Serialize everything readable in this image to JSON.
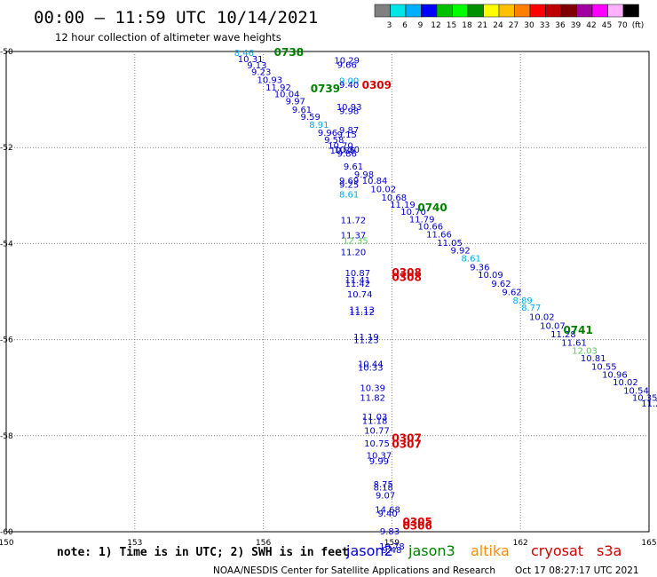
{
  "header": {
    "title": "00:00 – 11:59 UTC 10/14/2021",
    "subtitle": "12 hour collection of altimeter wave heights"
  },
  "scale": {
    "colors": [
      "#808080",
      "#00e5e5",
      "#00b0ff",
      "#0000ff",
      "#00c000",
      "#00ff00",
      "#009000",
      "#ffff00",
      "#ffc000",
      "#ff7f00",
      "#ff0000",
      "#c00000",
      "#800000",
      "#a000a0",
      "#ff00ff",
      "#ffb0ff",
      "#000000"
    ],
    "labels": [
      "3",
      "6",
      "9",
      "12",
      "15",
      "18",
      "21",
      "24",
      "27",
      "30",
      "33",
      "36",
      "39",
      "42",
      "45",
      "70",
      "(ft)"
    ]
  },
  "footer": {
    "note": "note: 1) Time is in UTC; 2) SWH is in feet",
    "credit": "NOAA/NESDIS Center for Satellite Applications and Research",
    "timestamp": "Oct 17 08:27:17 UTC 2021",
    "legend": [
      {
        "name": "jason2",
        "color": "#0000cc"
      },
      {
        "name": "jason3",
        "color": "#008000"
      },
      {
        "name": "altika",
        "color": "#ff8c00"
      },
      {
        "name": "cryosat",
        "color": "#cc0000"
      },
      {
        "name": "s3a",
        "color": "#cc0000"
      }
    ]
  },
  "chart_data": {
    "type": "scatter",
    "xlim": [
      150,
      165
    ],
    "ylim": [
      -60,
      -50
    ],
    "x_ticks": [
      150,
      153,
      156,
      159,
      162,
      165
    ],
    "x_tick_labels": [
      "150",
      "153",
      "156",
      "159",
      "162",
      "165"
    ],
    "y_ticks": [
      -50,
      -52,
      -54,
      -56,
      -58,
      -60
    ],
    "y_tick_labels": [
      "-50",
      "-52",
      "-54",
      "-56",
      "-58",
      "-60"
    ],
    "grid": true,
    "value_colors": {
      "b": "#0000cc",
      "c": "#00aaee",
      "g": "#55cc55"
    },
    "pass_labels": [
      {
        "text": "0738",
        "x": 156.25,
        "y": -50.02,
        "color": "#008000"
      },
      {
        "text": "0739",
        "x": 157.1,
        "y": -50.78,
        "color": "#008000"
      },
      {
        "text": "0309",
        "x": 158.3,
        "y": -50.7,
        "color": "#dd0000"
      },
      {
        "text": "0740",
        "x": 159.6,
        "y": -53.25,
        "color": "#008000"
      },
      {
        "text": "0308",
        "x": 159.0,
        "y": -54.6,
        "color": "#dd0000"
      },
      {
        "text": "0308",
        "x": 159.0,
        "y": -54.7,
        "color": "#dd0000"
      },
      {
        "text": "0741",
        "x": 163.0,
        "y": -55.8,
        "color": "#008000"
      },
      {
        "text": "0307",
        "x": 159.0,
        "y": -58.05,
        "color": "#dd0000"
      },
      {
        "text": "0307",
        "x": 159.0,
        "y": -58.18,
        "color": "#dd0000"
      },
      {
        "text": "0305",
        "x": 159.25,
        "y": -59.8,
        "color": "#dd0000"
      },
      {
        "text": "0306",
        "x": 159.25,
        "y": -59.88,
        "color": "#dd0000"
      }
    ],
    "points": [
      [
        "8.46",
        155.55,
        -50.02,
        "c"
      ],
      [
        "10.31",
        155.7,
        -50.15,
        "b"
      ],
      [
        "9.13",
        155.85,
        -50.28,
        "b"
      ],
      [
        "9.23",
        155.95,
        -50.42,
        "b"
      ],
      [
        "10.93",
        156.15,
        -50.58,
        "b"
      ],
      [
        "11.92",
        156.35,
        -50.74,
        "b"
      ],
      [
        "10.04",
        156.55,
        -50.88,
        "b"
      ],
      [
        "9.97",
        156.75,
        -51.03,
        "b"
      ],
      [
        "9.61",
        156.9,
        -51.2,
        "b"
      ],
      [
        "9.59",
        157.1,
        -51.35,
        "b"
      ],
      [
        "8.91",
        157.3,
        -51.52,
        "c"
      ],
      [
        "9.96",
        157.5,
        -51.68,
        "b"
      ],
      [
        "9.58",
        157.65,
        -51.83,
        "b"
      ],
      [
        "10.70",
        157.8,
        -51.95,
        "b"
      ],
      [
        "10.86",
        157.85,
        -52.05,
        "b"
      ],
      [
        "9.61",
        158.1,
        -52.38,
        "b"
      ],
      [
        "9.98",
        158.35,
        -52.55,
        "b"
      ],
      [
        "10.84",
        158.6,
        -52.68,
        "b"
      ],
      [
        "10.02",
        158.8,
        -52.86,
        "b"
      ],
      [
        "10.68",
        159.05,
        -53.03,
        "b"
      ],
      [
        "11.19",
        159.25,
        -53.18,
        "b"
      ],
      [
        "10.70",
        159.5,
        -53.33,
        "b"
      ],
      [
        "11.79",
        159.7,
        -53.48,
        "b"
      ],
      [
        "10.66",
        159.9,
        -53.63,
        "b"
      ],
      [
        "11.66",
        160.1,
        -53.8,
        "b"
      ],
      [
        "11.05",
        160.35,
        -53.97,
        "b"
      ],
      [
        "9.92",
        160.6,
        -54.13,
        "b"
      ],
      [
        "8.61",
        160.85,
        -54.3,
        "c"
      ],
      [
        "9.36",
        161.05,
        -54.48,
        "b"
      ],
      [
        "10.09",
        161.3,
        -54.64,
        "b"
      ],
      [
        "9.62",
        161.55,
        -54.82,
        "b"
      ],
      [
        "9.62",
        161.8,
        -55.0,
        "b"
      ],
      [
        "8.89",
        162.05,
        -55.18,
        "c"
      ],
      [
        "8.77",
        162.25,
        -55.32,
        "c"
      ],
      [
        "10.02",
        162.5,
        -55.52,
        "b"
      ],
      [
        "10.07",
        162.75,
        -55.7,
        "b"
      ],
      [
        "11.28",
        163.0,
        -55.88,
        "b"
      ],
      [
        "11.61",
        163.25,
        -56.05,
        "b"
      ],
      [
        "12.03",
        163.5,
        -56.22,
        "g"
      ],
      [
        "10.81",
        163.7,
        -56.38,
        "b"
      ],
      [
        "10.55",
        163.95,
        -56.55,
        "b"
      ],
      [
        "10.96",
        164.2,
        -56.72,
        "b"
      ],
      [
        "10.02",
        164.45,
        -56.88,
        "b"
      ],
      [
        "10.54",
        164.7,
        -57.05,
        "b"
      ],
      [
        "10.35",
        164.9,
        -57.2,
        "b"
      ],
      [
        "11.2",
        165.05,
        -57.32,
        "b"
      ],
      [
        "10.29",
        157.95,
        -50.18,
        "b"
      ],
      [
        "9.66",
        157.95,
        -50.27,
        "b"
      ],
      [
        "9.00",
        158.0,
        -50.6,
        "c"
      ],
      [
        "9.40",
        158.0,
        -50.68,
        "b"
      ],
      [
        "10.93",
        158.0,
        -51.15,
        "b"
      ],
      [
        "9.98",
        158.0,
        -51.23,
        "b"
      ],
      [
        "9.87",
        158.0,
        -51.63,
        "b"
      ],
      [
        "9.15",
        157.95,
        -51.72,
        "b"
      ],
      [
        "10.30",
        157.95,
        -52.03,
        "b"
      ],
      [
        "9.86",
        157.95,
        -52.12,
        "b"
      ],
      [
        "9.69",
        158.0,
        -52.68,
        "b"
      ],
      [
        "9.25",
        158.0,
        -52.76,
        "b"
      ],
      [
        "8.61",
        158.0,
        -52.97,
        "c"
      ],
      [
        "11.72",
        158.1,
        -53.5,
        "b"
      ],
      [
        "11.37",
        158.1,
        -53.82,
        "b"
      ],
      [
        "12.35",
        158.15,
        -53.93,
        "g"
      ],
      [
        "11.20",
        158.1,
        -54.17,
        "b"
      ],
      [
        "10.87",
        158.2,
        -54.6,
        "b"
      ],
      [
        "11.41",
        158.2,
        -54.75,
        "b"
      ],
      [
        "11.42",
        158.2,
        -54.82,
        "b"
      ],
      [
        "10.74",
        158.25,
        -55.05,
        "b"
      ],
      [
        "11.13",
        158.3,
        -55.37,
        "b"
      ],
      [
        "11.12",
        158.3,
        -55.42,
        "b"
      ],
      [
        "11.19",
        158.4,
        -55.93,
        "b"
      ],
      [
        "11.23",
        158.4,
        -56.0,
        "b"
      ],
      [
        "10.44",
        158.5,
        -56.5,
        "b"
      ],
      [
        "10.33",
        158.5,
        -56.57,
        "b"
      ],
      [
        "10.39",
        158.55,
        -57.0,
        "b"
      ],
      [
        "11.82",
        158.55,
        -57.2,
        "b"
      ],
      [
        "11.03",
        158.6,
        -57.6,
        "b"
      ],
      [
        "11.18",
        158.6,
        -57.68,
        "b"
      ],
      [
        "10.77",
        158.65,
        -57.88,
        "b"
      ],
      [
        "10.75",
        158.65,
        -58.15,
        "b"
      ],
      [
        "10.37",
        158.7,
        -58.4,
        "b"
      ],
      [
        "9.99",
        158.7,
        -58.52,
        "b"
      ],
      [
        "8.75",
        158.8,
        -59.0,
        "b"
      ],
      [
        "8.18",
        158.8,
        -59.07,
        "b"
      ],
      [
        "9.07",
        158.85,
        -59.23,
        "b"
      ],
      [
        "14.68",
        158.9,
        -59.53,
        "b"
      ],
      [
        "9.40",
        158.9,
        -59.61,
        "b"
      ],
      [
        "9.83",
        158.95,
        -59.98,
        "b"
      ],
      [
        "10.78",
        159.0,
        -60.3,
        "b"
      ],
      [
        "9.48",
        159.0,
        -60.37,
        "b"
      ]
    ]
  }
}
